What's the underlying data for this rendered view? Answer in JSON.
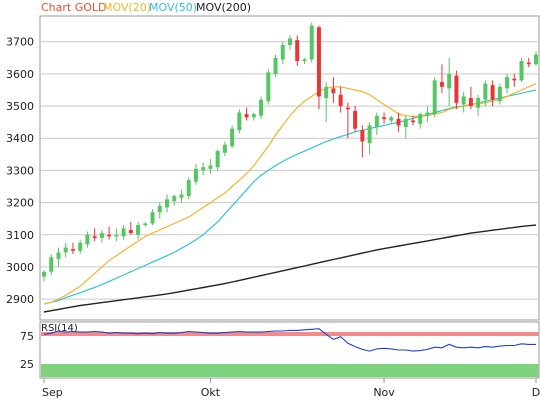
{
  "legend": [
    {
      "label": "Chart GOLD",
      "color": "#e0542e"
    },
    {
      "label": "MOV(20)",
      "color": "#f2b52a"
    },
    {
      "label": "MOV(50)",
      "color": "#33c3d7"
    },
    {
      "label": "MOV(200)",
      "color": "#222222"
    }
  ],
  "rsi_label": "RSI(14)",
  "colors": {
    "up": "#56c663",
    "down": "#e83535",
    "rsi_line": "#1f3fd6",
    "overbought_band": "#f48a8a",
    "oversold_band": "#7fd37f",
    "grid": "#c9c9c9"
  },
  "chart_data": [
    {
      "type": "candlestick",
      "title": "",
      "x_ticks": [
        "Sep",
        "Okt",
        "Nov",
        "D"
      ],
      "y_ticks": [
        2900,
        3000,
        3100,
        3200,
        3300,
        3400,
        3500,
        3600,
        3700
      ],
      "ylim": [
        2835,
        3780
      ],
      "grid": true,
      "ohlc": [
        [
          2970,
          2990,
          2955,
          2985
        ],
        [
          2985,
          3040,
          2975,
          3030
        ],
        [
          3025,
          3060,
          3000,
          3045
        ],
        [
          3045,
          3075,
          3030,
          3060
        ],
        [
          3055,
          3075,
          3040,
          3050
        ],
        [
          3050,
          3085,
          3040,
          3075
        ],
        [
          3070,
          3110,
          3060,
          3100
        ],
        [
          3095,
          3120,
          3080,
          3090
        ],
        [
          3090,
          3115,
          3075,
          3105
        ],
        [
          3100,
          3125,
          3085,
          3095
        ],
        [
          3095,
          3120,
          3080,
          3100
        ],
        [
          3095,
          3130,
          3085,
          3120
        ],
        [
          3115,
          3140,
          3100,
          3105
        ],
        [
          3100,
          3140,
          3085,
          3130
        ],
        [
          3130,
          3140,
          3125,
          3135
        ],
        [
          3135,
          3180,
          3130,
          3170
        ],
        [
          3170,
          3200,
          3150,
          3190
        ],
        [
          3185,
          3225,
          3170,
          3210
        ],
        [
          3205,
          3225,
          3190,
          3220
        ],
        [
          3215,
          3240,
          3200,
          3225
        ],
        [
          3220,
          3280,
          3210,
          3270
        ],
        [
          3265,
          3320,
          3255,
          3305
        ],
        [
          3300,
          3325,
          3285,
          3310
        ],
        [
          3305,
          3335,
          3290,
          3315
        ],
        [
          3310,
          3365,
          3300,
          3360
        ],
        [
          3355,
          3390,
          3345,
          3380
        ],
        [
          3375,
          3440,
          3370,
          3430
        ],
        [
          3425,
          3490,
          3415,
          3480
        ],
        [
          3475,
          3495,
          3455,
          3465
        ],
        [
          3465,
          3480,
          3455,
          3475
        ],
        [
          3470,
          3530,
          3460,
          3520
        ],
        [
          3515,
          3615,
          3505,
          3605
        ],
        [
          3600,
          3660,
          3590,
          3650
        ],
        [
          3645,
          3700,
          3630,
          3690
        ],
        [
          3690,
          3720,
          3675,
          3710
        ],
        [
          3705,
          3720,
          3625,
          3640
        ],
        [
          3640,
          3650,
          3630,
          3645
        ],
        [
          3645,
          3760,
          3635,
          3750
        ],
        [
          3745,
          3750,
          3490,
          3530
        ],
        [
          3525,
          3575,
          3450,
          3560
        ],
        [
          3555,
          3590,
          3510,
          3540
        ],
        [
          3535,
          3560,
          3480,
          3500
        ],
        [
          3495,
          3510,
          3400,
          3490
        ],
        [
          3485,
          3500,
          3420,
          3430
        ],
        [
          3425,
          3440,
          3340,
          3390
        ],
        [
          3385,
          3450,
          3350,
          3440
        ],
        [
          3435,
          3480,
          3410,
          3470
        ],
        [
          3465,
          3480,
          3445,
          3460
        ],
        [
          3455,
          3470,
          3445,
          3465
        ],
        [
          3460,
          3480,
          3420,
          3440
        ],
        [
          3435,
          3470,
          3400,
          3460
        ],
        [
          3455,
          3470,
          3440,
          3450
        ],
        [
          3445,
          3480,
          3430,
          3475
        ],
        [
          3470,
          3500,
          3450,
          3480
        ],
        [
          3475,
          3590,
          3465,
          3580
        ],
        [
          3575,
          3630,
          3540,
          3560
        ],
        [
          3555,
          3650,
          3500,
          3600
        ],
        [
          3595,
          3610,
          3490,
          3510
        ],
        [
          3505,
          3545,
          3480,
          3530
        ],
        [
          3525,
          3560,
          3490,
          3500
        ],
        [
          3495,
          3535,
          3470,
          3525
        ],
        [
          3520,
          3580,
          3500,
          3570
        ],
        [
          3565,
          3580,
          3500,
          3520
        ],
        [
          3515,
          3570,
          3505,
          3560
        ],
        [
          3555,
          3600,
          3540,
          3590
        ],
        [
          3585,
          3600,
          3560,
          3580
        ],
        [
          3580,
          3650,
          3575,
          3640
        ],
        [
          3635,
          3650,
          3620,
          3630
        ],
        [
          3630,
          3670,
          3625,
          3660
        ]
      ],
      "series": [
        {
          "name": "MOV(20)",
          "values": [
            2885,
            2890,
            2900,
            2912,
            2925,
            2940,
            2960,
            2980,
            3000,
            3020,
            3035,
            3050,
            3065,
            3080,
            3095,
            3105,
            3115,
            3125,
            3135,
            3145,
            3155,
            3170,
            3185,
            3200,
            3215,
            3230,
            3250,
            3270,
            3290,
            3315,
            3345,
            3375,
            3410,
            3440,
            3470,
            3495,
            3515,
            3530,
            3545,
            3555,
            3560,
            3560,
            3555,
            3550,
            3545,
            3535,
            3520,
            3505,
            3490,
            3475,
            3470,
            3468,
            3468,
            3470,
            3475,
            3480,
            3490,
            3495,
            3500,
            3505,
            3508,
            3510,
            3515,
            3520,
            3530,
            3540,
            3550,
            3560,
            3570
          ]
        },
        {
          "name": "MOV(50)",
          "values": [
            2885,
            2890,
            2895,
            2905,
            2912,
            2920,
            2928,
            2936,
            2945,
            2955,
            2965,
            2975,
            2985,
            2995,
            3005,
            3015,
            3025,
            3035,
            3045,
            3058,
            3070,
            3085,
            3100,
            3120,
            3140,
            3165,
            3190,
            3215,
            3240,
            3265,
            3285,
            3300,
            3315,
            3328,
            3340,
            3350,
            3360,
            3370,
            3380,
            3390,
            3398,
            3405,
            3412,
            3420,
            3425,
            3430,
            3435,
            3440,
            3445,
            3450,
            3455,
            3462,
            3468,
            3474,
            3480,
            3486,
            3492,
            3497,
            3500,
            3505,
            3510,
            3515,
            3520,
            3525,
            3530,
            3535,
            3540,
            3545,
            3550
          ]
        },
        {
          "name": "MOV(200)",
          "values": [
            2860,
            2864,
            2868,
            2872,
            2876,
            2880,
            2883,
            2886,
            2889,
            2892,
            2895,
            2898,
            2901,
            2904,
            2907,
            2910,
            2913,
            2916,
            2920,
            2924,
            2928,
            2932,
            2936,
            2940,
            2944,
            2948,
            2953,
            2958,
            2963,
            2968,
            2973,
            2978,
            2983,
            2988,
            2993,
            2998,
            3003,
            3008,
            3013,
            3018,
            3023,
            3028,
            3033,
            3038,
            3043,
            3048,
            3053,
            3057,
            3061,
            3065,
            3069,
            3073,
            3077,
            3081,
            3085,
            3089,
            3093,
            3097,
            3101,
            3105,
            3108,
            3111,
            3114,
            3117,
            3120,
            3123,
            3126,
            3128,
            3130
          ]
        }
      ]
    },
    {
      "type": "line",
      "title": "RSI(14)",
      "y_ticks": [
        25,
        75
      ],
      "ylim": [
        0,
        100
      ],
      "bands": [
        {
          "from": 75,
          "to": 100,
          "name": "overbought"
        },
        {
          "from": 0,
          "to": 25,
          "name": "oversold"
        }
      ],
      "series": [
        {
          "name": "RSI(14)",
          "values": [
            78,
            80,
            84,
            82,
            83,
            82,
            82,
            83,
            82,
            80,
            81,
            80,
            80,
            79,
            80,
            79,
            81,
            80,
            80,
            81,
            83,
            82,
            81,
            80,
            80,
            81,
            82,
            83,
            82,
            82,
            82,
            83,
            84,
            84,
            85,
            85,
            86,
            87,
            88,
            78,
            69,
            74,
            62,
            56,
            51,
            48,
            52,
            53,
            52,
            50,
            50,
            48,
            49,
            51,
            55,
            54,
            60,
            55,
            54,
            55,
            54,
            56,
            55,
            57,
            58,
            58,
            61,
            60,
            60
          ]
        }
      ]
    }
  ]
}
